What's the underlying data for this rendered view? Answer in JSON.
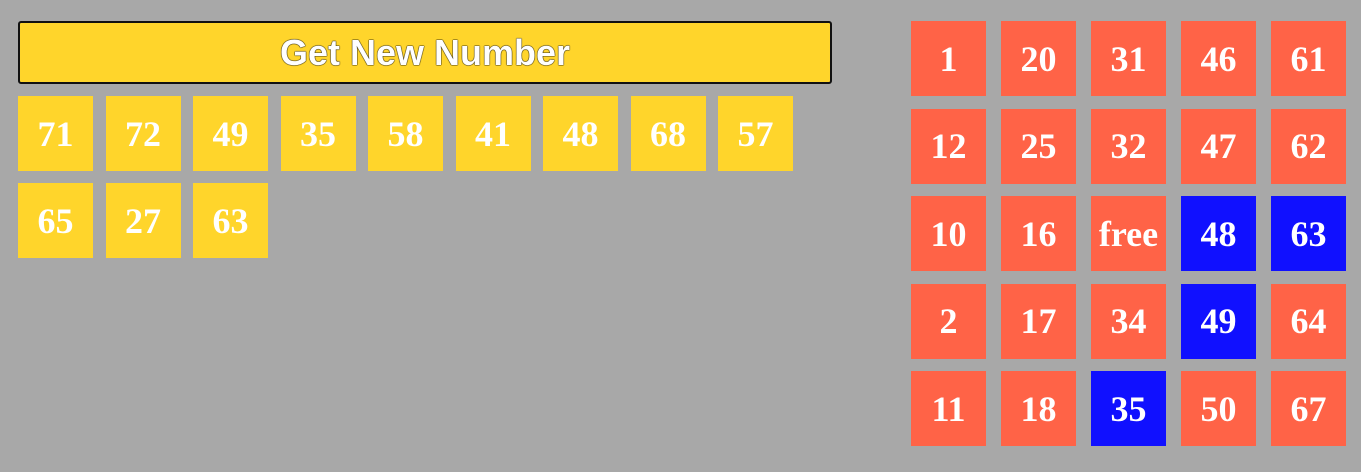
{
  "button": {
    "label": "Get New Number"
  },
  "called_numbers": [
    "71",
    "72",
    "49",
    "35",
    "58",
    "41",
    "48",
    "68",
    "57",
    "65",
    "27",
    "63"
  ],
  "card": {
    "rows": [
      [
        {
          "value": "1",
          "marked": false
        },
        {
          "value": "20",
          "marked": false
        },
        {
          "value": "31",
          "marked": false
        },
        {
          "value": "46",
          "marked": false
        },
        {
          "value": "61",
          "marked": false
        }
      ],
      [
        {
          "value": "12",
          "marked": false
        },
        {
          "value": "25",
          "marked": false
        },
        {
          "value": "32",
          "marked": false
        },
        {
          "value": "47",
          "marked": false
        },
        {
          "value": "62",
          "marked": false
        }
      ],
      [
        {
          "value": "10",
          "marked": false
        },
        {
          "value": "16",
          "marked": false
        },
        {
          "value": "free",
          "marked": false
        },
        {
          "value": "48",
          "marked": true
        },
        {
          "value": "63",
          "marked": true
        }
      ],
      [
        {
          "value": "2",
          "marked": false
        },
        {
          "value": "17",
          "marked": false
        },
        {
          "value": "34",
          "marked": false
        },
        {
          "value": "49",
          "marked": true
        },
        {
          "value": "64",
          "marked": false
        }
      ],
      [
        {
          "value": "11",
          "marked": false
        },
        {
          "value": "18",
          "marked": false
        },
        {
          "value": "35",
          "marked": true
        },
        {
          "value": "50",
          "marked": false
        },
        {
          "value": "67",
          "marked": false
        }
      ]
    ]
  },
  "colors": {
    "background": "#a8a8a8",
    "called_cell": "#ffd52b",
    "card_cell": "#ff6347",
    "marked_cell": "#1010ff",
    "text": "#ffffff"
  }
}
